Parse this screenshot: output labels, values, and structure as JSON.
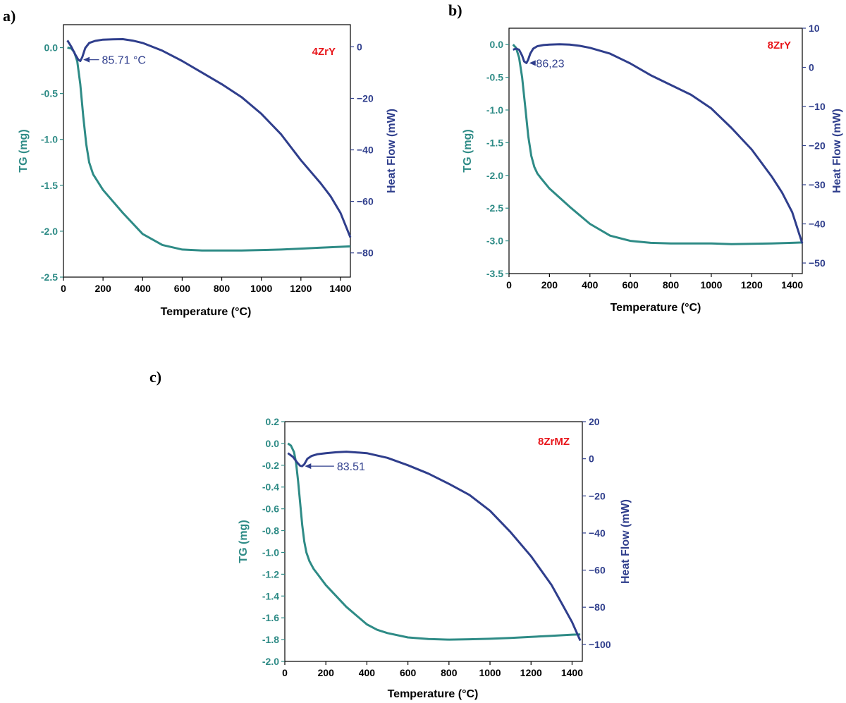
{
  "colors": {
    "tg": "#2e8b86",
    "hf": "#2f3e8c",
    "sample": "#e8161b",
    "axis": "#000000"
  },
  "chart_data": [
    {
      "panel": "a)",
      "type": "line",
      "sample_label": "4ZrY",
      "xlabel": "Temperature (°C)",
      "ylabel_left": "TG (mg)",
      "ylabel_right": "Heat Flow (mW)",
      "xlim": [
        0,
        1450
      ],
      "ylim_left": [
        -2.5,
        0.25
      ],
      "ylim_right": [
        -89.4,
        8.6
      ],
      "xticks": [
        0,
        200,
        400,
        600,
        800,
        1000,
        1200,
        1400
      ],
      "xtick_labels": [
        "0",
        "200",
        "400",
        "600",
        "800",
        "1000",
        "1200",
        "1400"
      ],
      "yticks_left": [
        0.0,
        -0.5,
        -1.0,
        -1.5,
        -2.0,
        -2.5
      ],
      "yticks_left_labels": [
        "0.0",
        "-0.5",
        "-1.0",
        "-1.5",
        "-2.0",
        "-2.5"
      ],
      "yticks_right": [
        0,
        -20,
        -40,
        -60,
        -80
      ],
      "yticks_right_labels": [
        "0",
        "−20",
        "−40",
        "−60",
        "−80"
      ],
      "annotation": {
        "text": "85.71 °C",
        "x": 85.71,
        "y": -5,
        "label_x": 180
      },
      "series": [
        {
          "name": "TG",
          "axis": "left",
          "x": [
            20,
            40,
            55,
            70,
            85,
            100,
            115,
            130,
            150,
            200,
            300,
            400,
            500,
            600,
            700,
            800,
            900,
            1000,
            1100,
            1200,
            1300,
            1400,
            1450
          ],
          "y": [
            0.0,
            -0.01,
            -0.05,
            -0.15,
            -0.4,
            -0.75,
            -1.05,
            -1.25,
            -1.38,
            -1.55,
            -1.8,
            -2.03,
            -2.15,
            -2.2,
            -2.21,
            -2.21,
            -2.21,
            -2.205,
            -2.2,
            -2.19,
            -2.18,
            -2.17,
            -2.165
          ]
        },
        {
          "name": "Heat Flow",
          "axis": "right",
          "x": [
            20,
            40,
            60,
            75,
            85,
            95,
            110,
            130,
            160,
            200,
            250,
            300,
            350,
            400,
            500,
            600,
            700,
            800,
            900,
            1000,
            1100,
            1200,
            1300,
            1350,
            1400,
            1450
          ],
          "y": [
            2.5,
            0,
            -3,
            -5,
            -5.5,
            -4,
            -0.5,
            1.5,
            2.3,
            2.8,
            2.9,
            3,
            2.4,
            1.5,
            -1.5,
            -5.5,
            -10,
            -14.5,
            -19.5,
            -26,
            -34,
            -44,
            -53,
            -58,
            -64.5,
            -74
          ]
        }
      ]
    },
    {
      "panel": "b)",
      "type": "line",
      "sample_label": "8ZrY",
      "xlabel": "Temperature (°C)",
      "ylabel_left": "TG  (mg)",
      "ylabel_right": "Heat Flow (mW)",
      "xlim": [
        0,
        1450
      ],
      "ylim_left": [
        -3.5,
        0.25
      ],
      "ylim_right": [
        -52.7,
        10
      ],
      "xticks": [
        0,
        200,
        400,
        600,
        800,
        1000,
        1200,
        1400
      ],
      "xtick_labels": [
        "0",
        "200",
        "400",
        "600",
        "800",
        "1000",
        "1200",
        "1400"
      ],
      "yticks_left": [
        0.0,
        -0.5,
        -1.0,
        -1.5,
        -2.0,
        -2.5,
        -3.0,
        -3.5
      ],
      "yticks_left_labels": [
        "0.0",
        "-0.5",
        "-1.0",
        "-1.5",
        "-2.0",
        "-2.5",
        "-3.0",
        "-3.5"
      ],
      "yticks_right": [
        10,
        0,
        -10,
        -20,
        -30,
        -40,
        -50
      ],
      "yticks_right_labels": [
        "10",
        "0",
        "−10",
        "−20",
        "−30",
        "−40",
        "−50"
      ],
      "annotation": {
        "text": "86,23",
        "x": 86.23,
        "y": 1.1,
        "label_x": 120
      },
      "series": [
        {
          "name": "TG",
          "axis": "left",
          "x": [
            20,
            35,
            50,
            65,
            80,
            95,
            110,
            125,
            140,
            160,
            200,
            300,
            400,
            500,
            600,
            700,
            800,
            900,
            1000,
            1100,
            1200,
            1300,
            1400,
            1450
          ],
          "y": [
            0.0,
            -0.05,
            -0.2,
            -0.5,
            -0.95,
            -1.4,
            -1.7,
            -1.87,
            -1.97,
            -2.05,
            -2.2,
            -2.48,
            -2.74,
            -2.92,
            -3.0,
            -3.03,
            -3.04,
            -3.04,
            -3.04,
            -3.05,
            -3.045,
            -3.04,
            -3.03,
            -3.025
          ]
        },
        {
          "name": "Heat Flow",
          "axis": "right",
          "x": [
            20,
            35,
            50,
            65,
            75,
            86,
            95,
            105,
            120,
            140,
            170,
            200,
            250,
            300,
            350,
            400,
            500,
            600,
            700,
            800,
            900,
            1000,
            1100,
            1200,
            1300,
            1350,
            1400,
            1450
          ],
          "y": [
            4.5,
            4.8,
            4.5,
            3,
            1.5,
            1.1,
            2,
            3.5,
            4.8,
            5.4,
            5.7,
            5.8,
            5.9,
            5.8,
            5.5,
            5,
            3.5,
            1,
            -2,
            -4.5,
            -7,
            -10.5,
            -15.5,
            -21,
            -28,
            -32,
            -37,
            -45
          ]
        }
      ]
    },
    {
      "panel": "c)",
      "type": "line",
      "sample_label": "8ZrMZ",
      "xlabel": "Temperature (°C)",
      "ylabel_left": "TG  (mg)",
      "ylabel_right": "Heat Flow (mW)",
      "xlim": [
        0,
        1450
      ],
      "ylim_left": [
        -2.0,
        0.2
      ],
      "ylim_right": [
        -109.2,
        20
      ],
      "xticks": [
        0,
        200,
        400,
        600,
        800,
        1000,
        1200,
        1400
      ],
      "xtick_labels": [
        "0",
        "200",
        "400",
        "600",
        "800",
        "1000",
        "1200",
        "1400"
      ],
      "yticks_left": [
        0.2,
        0.0,
        -0.2,
        -0.4,
        -0.6,
        -0.8,
        -1.0,
        -1.2,
        -1.4,
        -1.6,
        -1.8,
        -2.0
      ],
      "yticks_left_labels": [
        "0.2",
        "0.0",
        "-0.2",
        "-0.4",
        "-0.6",
        "-0.8",
        "-1.0",
        "-1.2",
        "-1.4",
        "-1.6",
        "-1.8",
        "-2.0"
      ],
      "yticks_right": [
        20,
        0,
        -20,
        -40,
        -60,
        -80,
        -100
      ],
      "yticks_right_labels": [
        "20",
        "0",
        "−20",
        "−40",
        "−60",
        "−80",
        "−100"
      ],
      "annotation": {
        "text": "83.51",
        "x": 83.51,
        "y": -4,
        "label_x": 240
      },
      "series": [
        {
          "name": "TG",
          "axis": "left",
          "x": [
            15,
            30,
            45,
            55,
            65,
            75,
            85,
            95,
            105,
            120,
            140,
            160,
            200,
            300,
            400,
            450,
            500,
            600,
            700,
            800,
            900,
            1000,
            1100,
            1200,
            1300,
            1400,
            1440
          ],
          "y": [
            0.0,
            -0.02,
            -0.08,
            -0.18,
            -0.35,
            -0.55,
            -0.75,
            -0.9,
            -1.0,
            -1.08,
            -1.15,
            -1.2,
            -1.3,
            -1.5,
            -1.66,
            -1.71,
            -1.74,
            -1.78,
            -1.795,
            -1.8,
            -1.797,
            -1.792,
            -1.785,
            -1.775,
            -1.765,
            -1.755,
            -1.752
          ]
        },
        {
          "name": "Heat Flow",
          "axis": "right",
          "x": [
            15,
            40,
            60,
            75,
            84,
            95,
            110,
            130,
            160,
            200,
            250,
            300,
            400,
            500,
            600,
            700,
            800,
            900,
            1000,
            1100,
            1200,
            1300,
            1350,
            1400,
            1440
          ],
          "y": [
            3,
            1,
            -2,
            -3.8,
            -4,
            -3,
            0,
            1.5,
            2.5,
            3,
            3.5,
            3.8,
            3,
            0.5,
            -3.5,
            -8,
            -13.5,
            -19.5,
            -28,
            -39.5,
            -52.5,
            -68,
            -78,
            -88,
            -98
          ]
        }
      ]
    }
  ]
}
